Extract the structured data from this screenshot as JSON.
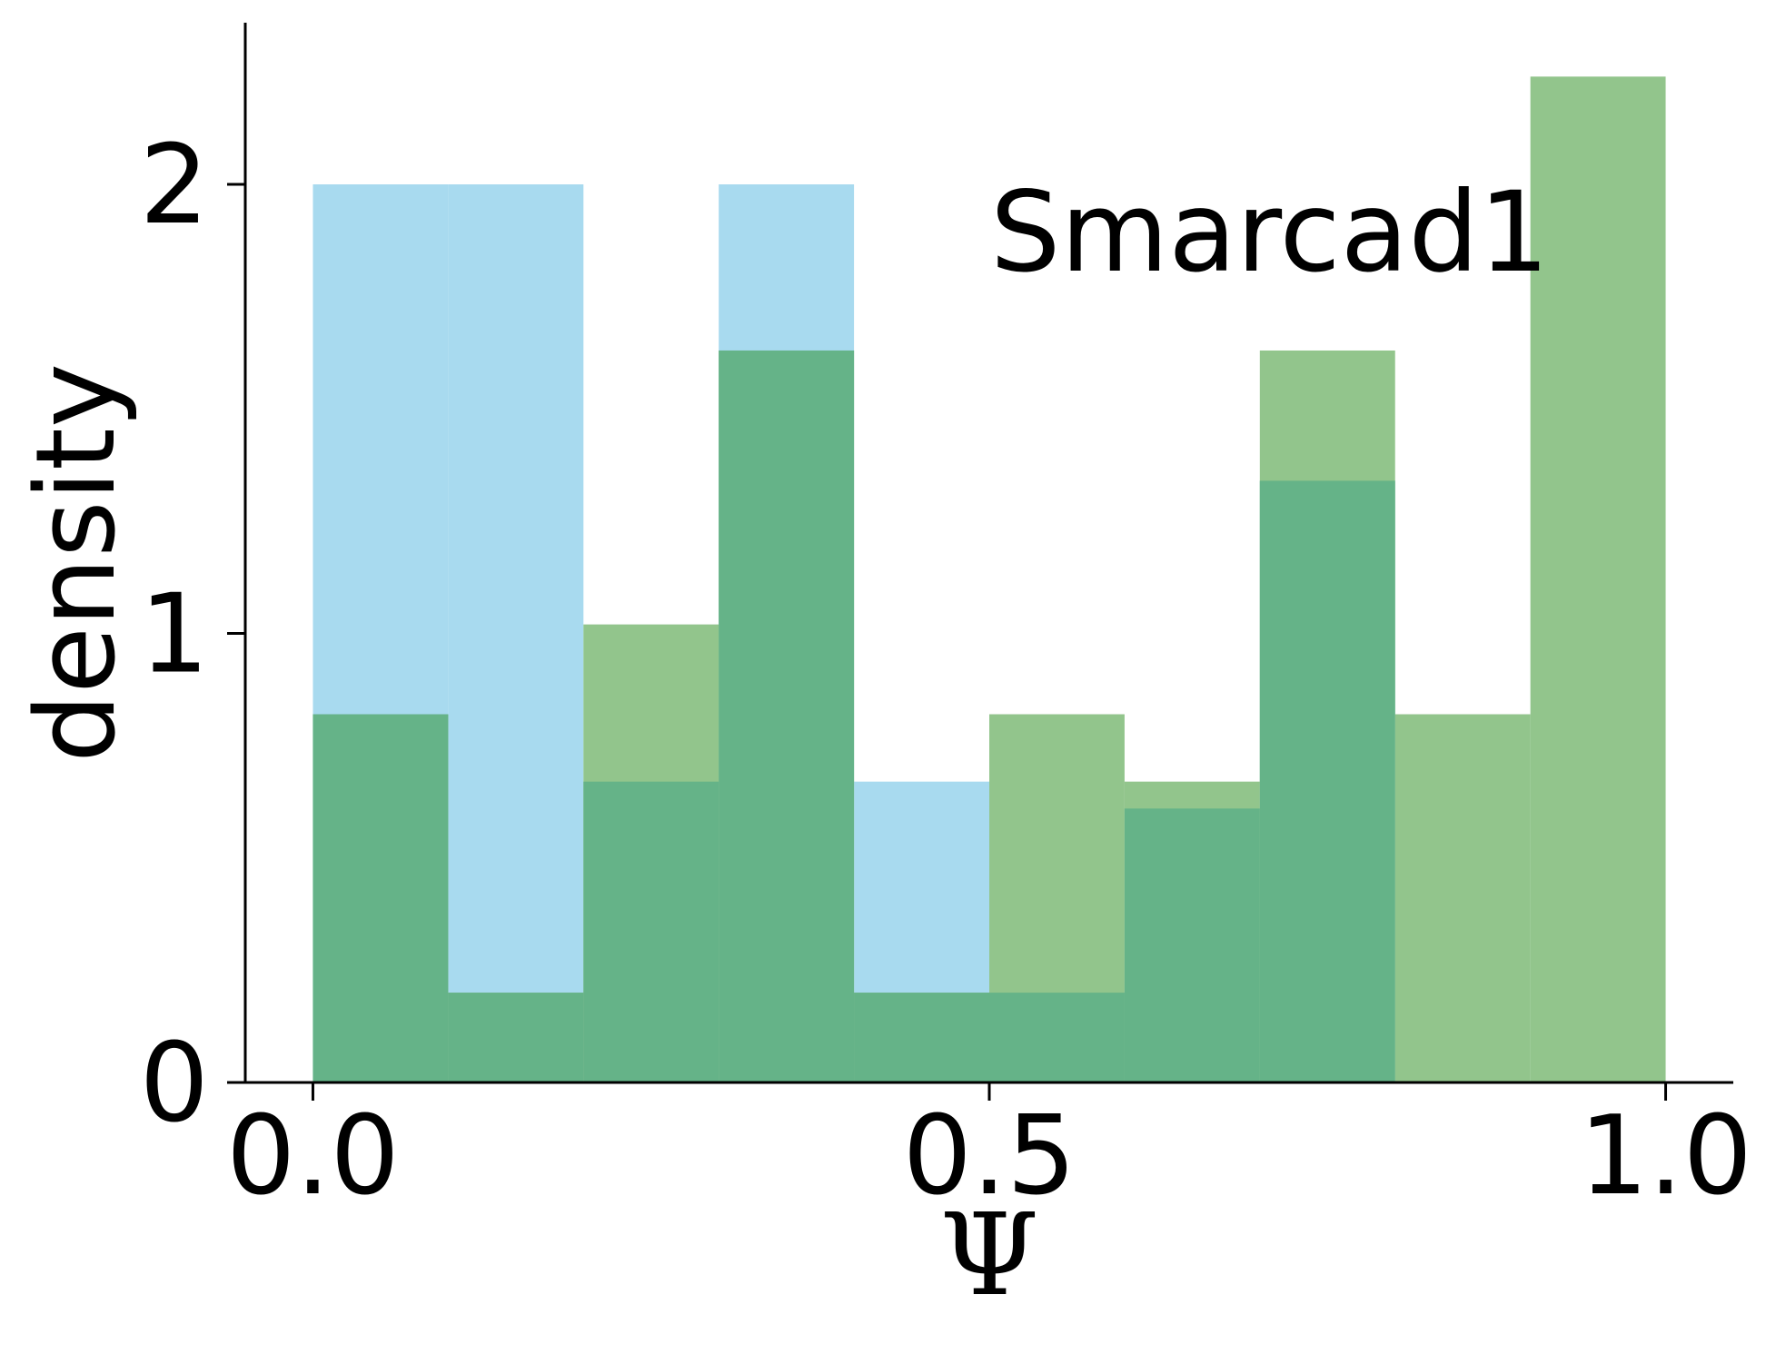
{
  "chart_data": {
    "type": "histogram",
    "title": "",
    "annotation": "Smarcad1",
    "xlabel": "Ψ",
    "ylabel": "density",
    "xlim": [
      -0.05,
      1.05
    ],
    "ylim": [
      0,
      2.36
    ],
    "bin_edges": [
      0.0,
      0.1,
      0.2,
      0.3,
      0.4,
      0.5,
      0.6,
      0.7,
      0.8,
      0.9,
      1.0
    ],
    "x_ticks": [
      {
        "value": 0.0,
        "label": "0.0"
      },
      {
        "value": 0.5,
        "label": "0.5"
      },
      {
        "value": 1.0,
        "label": "1.0"
      }
    ],
    "y_ticks": [
      {
        "value": 0,
        "label": "0"
      },
      {
        "value": 1,
        "label": "1"
      },
      {
        "value": 2,
        "label": "2"
      }
    ],
    "grid": false,
    "series": [
      {
        "color": "#a8daef",
        "values": [
          2.0,
          2.0,
          0.67,
          2.0,
          0.67,
          0.2,
          0.61,
          1.34,
          0.0,
          0.0
        ]
      },
      {
        "color": "#92c58c",
        "values": [
          0.82,
          0.2,
          1.02,
          1.63,
          0.2,
          0.82,
          0.67,
          1.63,
          0.82,
          2.24
        ]
      }
    ],
    "overlap_color": "#65b388"
  }
}
